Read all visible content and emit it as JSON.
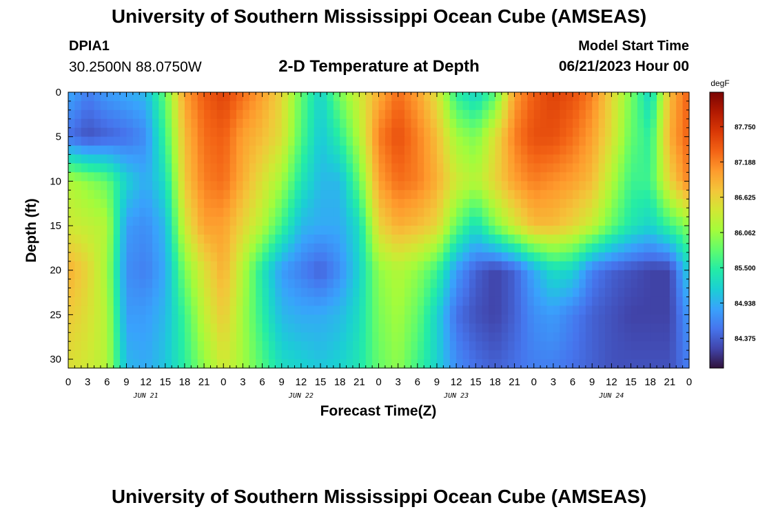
{
  "header": {
    "title": "University of Southern Mississippi Ocean Cube (AMSEAS)",
    "station": "DPIA1",
    "coordinates": "30.2500N  88.0750W",
    "subtitle": "2-D Temperature at Depth",
    "model_start_label": "Model Start Time",
    "model_start_value": "06/21/2023 Hour 00"
  },
  "footer": {
    "title": "University of Southern Mississippi Ocean Cube (AMSEAS)"
  },
  "colors": {
    "scale": [
      "#30123b",
      "#4145ab",
      "#4675ed",
      "#39a2fc",
      "#1bcfd4",
      "#24eca6",
      "#61fc6c",
      "#a4fc3b",
      "#d1e834",
      "#f3c63a",
      "#fe9b2d",
      "#f36315",
      "#d93806",
      "#b11901",
      "#7a0402"
    ]
  },
  "chart_data": {
    "type": "heatmap",
    "xlabel": "Forecast Time(Z)",
    "ylabel": "Depth (ft)",
    "x_range_hours": [
      0,
      96
    ],
    "y_range_ft": [
      0,
      31
    ],
    "y_inverted": true,
    "x_ticks": [
      "0",
      "3",
      "6",
      "9",
      "12",
      "15",
      "18",
      "21",
      "0",
      "3",
      "6",
      "9",
      "12",
      "15",
      "18",
      "21",
      "0",
      "3",
      "6",
      "9",
      "12",
      "15",
      "18",
      "21",
      "0",
      "3",
      "6",
      "9",
      "12",
      "15",
      "18",
      "21",
      "0"
    ],
    "day_labels": [
      "JUN 21",
      "JUN 22",
      "JUN 23",
      "JUN 24"
    ],
    "y_ticks": [
      0,
      5,
      10,
      15,
      20,
      25,
      30
    ],
    "colorbar": {
      "unit": "degF",
      "ticks": [
        "87.750",
        "87.188",
        "86.625",
        "86.062",
        "85.500",
        "84.938",
        "84.375"
      ],
      "tick_values": [
        87.75,
        87.188,
        86.625,
        86.062,
        85.5,
        84.938,
        84.375
      ],
      "range": [
        83.9,
        88.3
      ]
    },
    "depths_ft": [
      0,
      5,
      10,
      15,
      20,
      25,
      31
    ],
    "times_hours": [
      0,
      3,
      6,
      9,
      12,
      15,
      18,
      21,
      24,
      27,
      30,
      33,
      36,
      39,
      42,
      45,
      48,
      51,
      54,
      57,
      60,
      63,
      66,
      69,
      72,
      75,
      78,
      81,
      84,
      87,
      90,
      93,
      96
    ],
    "values": [
      [
        84.9,
        84.6,
        84.8,
        84.9,
        85.0,
        85.8,
        87.0,
        87.4,
        87.6,
        87.3,
        87.0,
        86.6,
        85.8,
        85.2,
        85.9,
        86.4,
        86.9,
        87.3,
        87.0,
        86.5,
        85.5,
        85.2,
        85.7,
        87.0,
        87.4,
        87.6,
        87.5,
        87.2,
        86.6,
        85.9,
        85.2,
        86.8,
        87.4
      ],
      [
        84.5,
        84.3,
        84.4,
        84.5,
        84.7,
        85.6,
        86.8,
        87.3,
        87.4,
        87.0,
        86.8,
        86.5,
        85.7,
        85.1,
        85.5,
        86.2,
        87.2,
        87.5,
        87.2,
        86.8,
        86.1,
        85.9,
        86.5,
        87.2,
        87.5,
        87.5,
        87.3,
        87.0,
        86.5,
        85.8,
        85.5,
        86.9,
        87.4
      ],
      [
        86.2,
        86.0,
        85.8,
        85.2,
        84.9,
        85.3,
        86.7,
        87.2,
        87.3,
        86.9,
        86.5,
        86.1,
        85.4,
        85.0,
        85.0,
        85.8,
        87.0,
        87.3,
        87.2,
        86.9,
        86.4,
        86.2,
        86.6,
        87.0,
        87.2,
        87.1,
        87.0,
        86.8,
        86.2,
        85.6,
        85.6,
        86.6,
        87.2
      ],
      [
        86.4,
        86.3,
        86.2,
        84.8,
        84.7,
        85.0,
        86.4,
        87.0,
        87.0,
        86.6,
        86.2,
        85.6,
        85.0,
        84.9,
        84.9,
        85.3,
        86.6,
        86.9,
        86.8,
        86.6,
        85.8,
        85.3,
        85.9,
        86.4,
        86.8,
        86.8,
        86.6,
        86.3,
        85.8,
        85.4,
        85.2,
        85.6,
        86.0
      ],
      [
        86.9,
        86.6,
        86.1,
        84.7,
        84.6,
        84.9,
        85.9,
        86.5,
        86.9,
        86.2,
        85.4,
        84.8,
        84.6,
        84.4,
        84.7,
        85.2,
        86.0,
        86.2,
        86.0,
        85.6,
        84.8,
        84.4,
        84.2,
        84.4,
        84.9,
        85.3,
        85.2,
        84.6,
        84.4,
        84.3,
        84.2,
        84.2,
        85.2
      ],
      [
        86.7,
        86.5,
        86.2,
        84.8,
        84.8,
        85.0,
        85.6,
        86.3,
        86.7,
        86.1,
        85.5,
        85.0,
        84.9,
        84.9,
        85.0,
        85.3,
        85.9,
        86.1,
        85.8,
        85.2,
        84.5,
        84.3,
        84.2,
        84.4,
        84.7,
        84.8,
        84.6,
        84.4,
        84.3,
        84.2,
        84.2,
        84.2,
        84.8
      ],
      [
        86.5,
        86.4,
        86.2,
        85.0,
        84.9,
        85.1,
        85.5,
        86.0,
        86.4,
        86.1,
        85.7,
        85.3,
        85.2,
        85.1,
        85.2,
        85.4,
        85.8,
        86.0,
        85.6,
        85.2,
        84.7,
        84.5,
        84.4,
        84.5,
        84.6,
        84.6,
        84.5,
        84.4,
        84.3,
        84.3,
        84.3,
        84.3,
        84.6
      ]
    ]
  }
}
